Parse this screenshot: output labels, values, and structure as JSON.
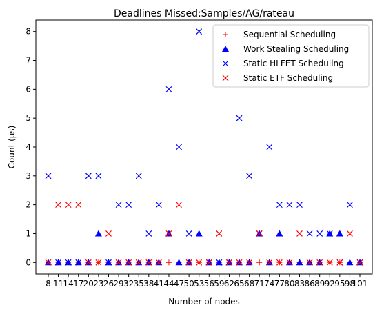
{
  "chart_data": {
    "type": "scatter",
    "title": "Deadlines Missed:Samples/AG/rateau",
    "xlabel": "Number of nodes",
    "ylabel": "Count (µs)",
    "ylim": [
      -0.4,
      8.4
    ],
    "yticks": [
      0,
      1,
      2,
      3,
      4,
      5,
      6,
      7,
      8
    ],
    "categories": [
      "8",
      "11",
      "14",
      "17",
      "20",
      "23",
      "26",
      "29",
      "32",
      "35",
      "38",
      "41",
      "44",
      "47",
      "50",
      "53",
      "56",
      "59",
      "62",
      "65",
      "68",
      "71",
      "74",
      "77",
      "80",
      "83",
      "86",
      "89",
      "92",
      "95",
      "98",
      "101"
    ],
    "legend_position": "top-right",
    "series": [
      {
        "name": "Sequential Scheduling",
        "marker": "plus",
        "color": "#ff0000",
        "values": [
          0,
          0,
          0,
          0,
          0,
          0,
          0,
          0,
          0,
          0,
          0,
          0,
          0,
          0,
          0,
          0,
          0,
          0,
          0,
          0,
          0,
          0,
          0,
          0,
          0,
          0,
          0,
          0,
          0,
          0,
          0,
          0
        ]
      },
      {
        "name": "Work Stealing Scheduling",
        "marker": "triangle",
        "color": "#0000ff",
        "values": [
          0,
          0,
          0,
          0,
          0,
          1,
          0,
          0,
          0,
          0,
          0,
          0,
          1,
          0,
          0,
          1,
          0,
          0,
          0,
          0,
          0,
          1,
          0,
          1,
          0,
          0,
          0,
          0,
          1,
          1,
          0,
          0
        ]
      },
      {
        "name": "Static HLFET Scheduling",
        "marker": "x",
        "color": "#0000ff",
        "values": [
          3,
          0,
          0,
          0,
          3,
          3,
          0,
          2,
          2,
          3,
          1,
          2,
          6,
          4,
          1,
          8,
          0,
          0,
          0,
          5,
          3,
          1,
          4,
          2,
          2,
          2,
          1,
          1,
          1,
          0,
          2,
          0
        ]
      },
      {
        "name": "Static ETF Scheduling",
        "marker": "x",
        "color": "#ff0000",
        "values": [
          0,
          2,
          2,
          2,
          0,
          0,
          1,
          0,
          0,
          0,
          0,
          0,
          1,
          2,
          0,
          0,
          0,
          1,
          0,
          0,
          0,
          1,
          0,
          0,
          0,
          1,
          0,
          0,
          0,
          0,
          1,
          0
        ]
      }
    ]
  }
}
